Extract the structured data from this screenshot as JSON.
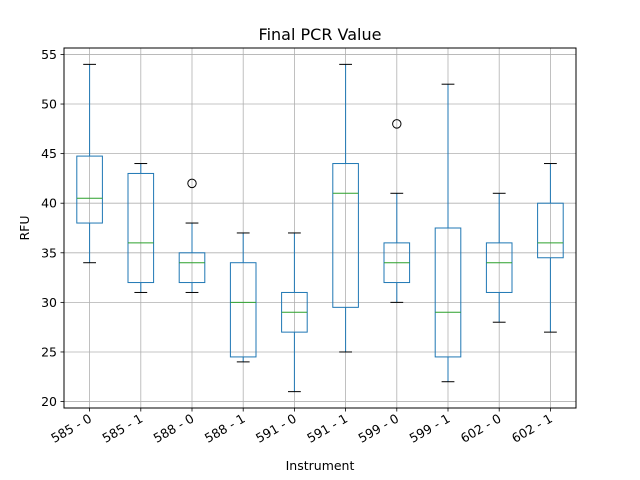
{
  "chart_data": {
    "type": "box",
    "title": "Final PCR Value",
    "xlabel": "Instrument",
    "ylabel": "RFU",
    "ylim": [
      19.35,
      55.65
    ],
    "yticks": [
      20,
      25,
      30,
      35,
      40,
      45,
      50,
      55
    ],
    "grid": true,
    "categories": [
      "585 - 0",
      "585 - 1",
      "588 - 0",
      "588 - 1",
      "591 - 0",
      "591 - 1",
      "599 - 0",
      "599 - 1",
      "602 - 0",
      "602 - 1"
    ],
    "boxes": [
      {
        "whisker_low": 34,
        "q1": 38,
        "median": 40.5,
        "q3": 44.75,
        "whisker_high": 54,
        "outliers": []
      },
      {
        "whisker_low": 31,
        "q1": 32,
        "median": 36,
        "q3": 43,
        "whisker_high": 44,
        "outliers": []
      },
      {
        "whisker_low": 31,
        "q1": 32,
        "median": 34,
        "q3": 35,
        "whisker_high": 38,
        "outliers": [
          42
        ]
      },
      {
        "whisker_low": 24,
        "q1": 24.5,
        "median": 30,
        "q3": 34,
        "whisker_high": 37,
        "outliers": []
      },
      {
        "whisker_low": 21,
        "q1": 27,
        "median": 29,
        "q3": 31,
        "whisker_high": 37,
        "outliers": []
      },
      {
        "whisker_low": 25,
        "q1": 29.5,
        "median": 41,
        "q3": 44,
        "whisker_high": 54,
        "outliers": []
      },
      {
        "whisker_low": 30,
        "q1": 32,
        "median": 34,
        "q3": 36,
        "whisker_high": 41,
        "outliers": [
          48
        ]
      },
      {
        "whisker_low": 22,
        "q1": 24.5,
        "median": 29,
        "q3": 37.5,
        "whisker_high": 52,
        "outliers": []
      },
      {
        "whisker_low": 28,
        "q1": 31,
        "median": 34,
        "q3": 36,
        "whisker_high": 41,
        "outliers": []
      },
      {
        "whisker_low": 27,
        "q1": 34.5,
        "median": 36,
        "q3": 40,
        "whisker_high": 44,
        "outliers": []
      }
    ],
    "colors": {
      "box": "#1f77b4",
      "median": "#2ca02c",
      "whisker_cap": "#000000",
      "grid": "#b0b0b0",
      "axes": "#000000"
    }
  }
}
